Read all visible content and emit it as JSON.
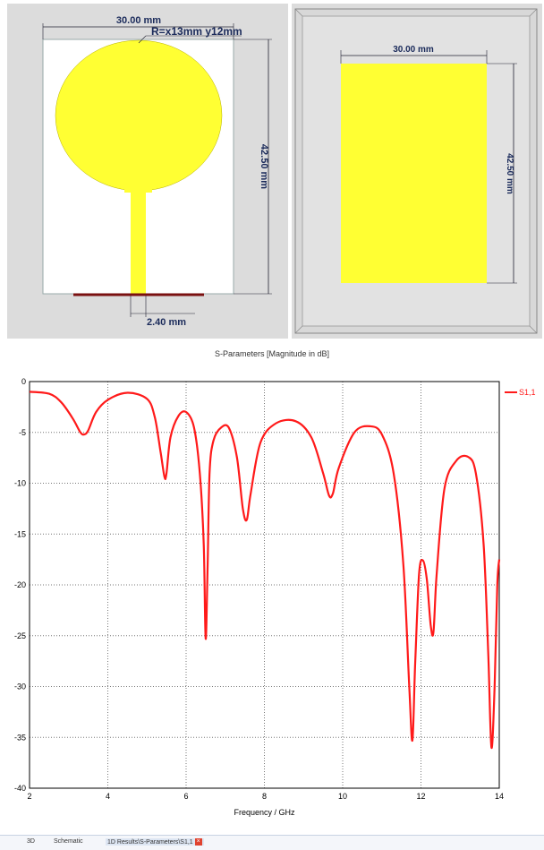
{
  "left_view": {
    "width_dim": "30.00 mm",
    "radius_label": "R=x13mm y12mm",
    "height_dim": "42.50 mm",
    "feed_dim": "2.40 mm"
  },
  "right_view": {
    "width_dim": "30.00 mm",
    "height_dim": "42.50 mm"
  },
  "colors": {
    "patch": "#ffff33",
    "background": "#dcdcdc",
    "trace": "#ff1a1a",
    "ground_line": "#7a1010"
  },
  "chart_data": {
    "type": "line",
    "title": "S-Parameters [Magnitude in dB]",
    "xlabel": "Frequency / GHz",
    "ylabel": "",
    "xlim": [
      2,
      14
    ],
    "ylim": [
      -40,
      0
    ],
    "xticks": [
      "2",
      "4",
      "6",
      "8",
      "10",
      "12",
      "14"
    ],
    "yticks": [
      "0",
      "-5",
      "-10",
      "-15",
      "-20",
      "-25",
      "-30",
      "-35",
      "-40"
    ],
    "grid": true,
    "legend_position": "top-right",
    "series": [
      {
        "name": "S1,1",
        "color": "#ff1a1a",
        "x": [
          2.0,
          2.5,
          2.8,
          3.1,
          3.3,
          3.4,
          3.5,
          3.7,
          4.0,
          4.5,
          5.0,
          5.2,
          5.35,
          5.45,
          5.5,
          5.6,
          5.8,
          6.0,
          6.2,
          6.35,
          6.45,
          6.5,
          6.55,
          6.6,
          6.7,
          6.9,
          7.1,
          7.3,
          7.45,
          7.55,
          7.65,
          7.9,
          8.3,
          8.8,
          9.2,
          9.5,
          9.65,
          9.75,
          9.9,
          10.3,
          10.7,
          11.0,
          11.3,
          11.55,
          11.7,
          11.78,
          11.85,
          11.95,
          12.05,
          12.15,
          12.25,
          12.32,
          12.4,
          12.6,
          12.9,
          13.2,
          13.4,
          13.6,
          13.72,
          13.8,
          13.88,
          13.95,
          14.0
        ],
        "values": [
          -1.0,
          -1.2,
          -2.0,
          -3.6,
          -5.0,
          -5.2,
          -4.8,
          -3.0,
          -1.8,
          -1.1,
          -1.7,
          -3.5,
          -7.0,
          -9.4,
          -9.0,
          -5.5,
          -3.4,
          -3.0,
          -4.5,
          -9.0,
          -16.0,
          -25.3,
          -18.0,
          -9.0,
          -5.8,
          -4.5,
          -4.6,
          -7.5,
          -12.5,
          -13.6,
          -11.0,
          -6.0,
          -4.1,
          -3.9,
          -5.5,
          -9.0,
          -11.2,
          -11.0,
          -8.5,
          -5.0,
          -4.4,
          -5.2,
          -9.0,
          -18.0,
          -30.0,
          -35.3,
          -28.0,
          -19.0,
          -17.6,
          -19.5,
          -24.0,
          -24.6,
          -19.0,
          -10.5,
          -7.8,
          -7.4,
          -9.0,
          -16.0,
          -27.0,
          -36.0,
          -30.0,
          -20.0,
          -17.5
        ]
      }
    ]
  },
  "bottom_tabs": {
    "tab_3d": "3D",
    "tab_schematic": "Schematic",
    "tab_results": "1D Results\\S-Parameters\\S1,1",
    "close_glyph": "×"
  }
}
